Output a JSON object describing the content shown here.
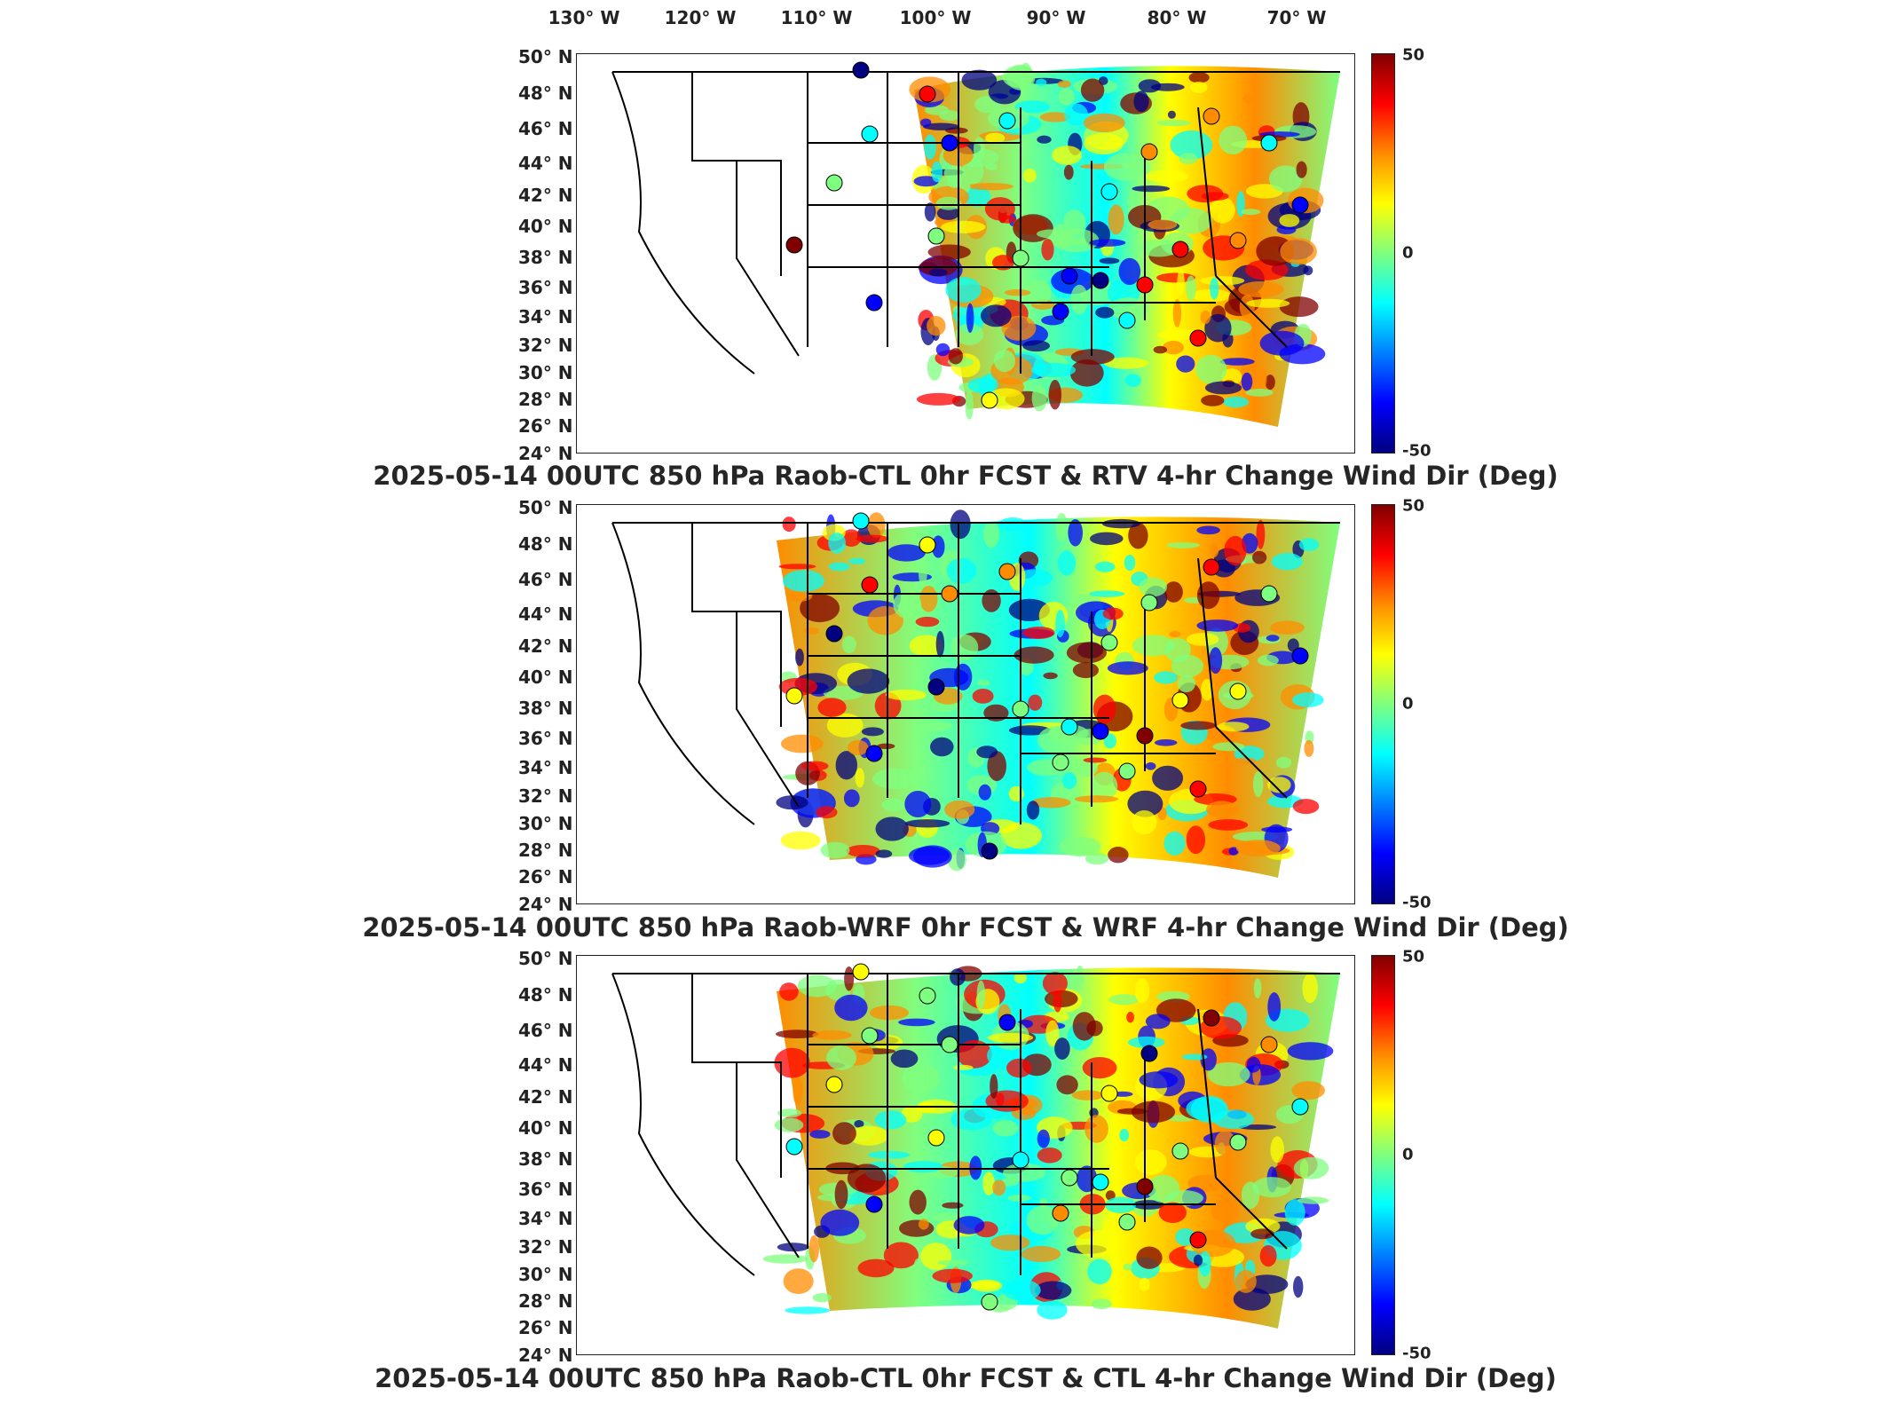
{
  "lon_labels": [
    "130° W",
    "120° W",
    "110° W",
    "100° W",
    "90° W",
    "80° W",
    "70° W"
  ],
  "lat_labels": [
    "50° N",
    "48° N",
    "46° N",
    "44° N",
    "42° N",
    "40° N",
    "38° N",
    "36° N",
    "34° N",
    "32° N",
    "30° N",
    "28° N",
    "26° N",
    "24° N"
  ],
  "colorbar": {
    "max_label": "50",
    "mid_label": "0",
    "min_label": "-50",
    "colormap": "jet",
    "range": [
      -50,
      50
    ]
  },
  "panels": [
    {
      "title": "2025-05-14 00UTC 850 hPa Raob-CTL 0hr FCST & RTV 4-hr Change Wind Dir (Deg)"
    },
    {
      "title": "2025-05-14 00UTC 850 hPa Raob-WRF 0hr FCST & WRF 4-hr Change Wind Dir (Deg)"
    },
    {
      "title": "2025-05-14 00UTC 850 hPa Raob-CTL 0hr FCST & CTL 4-hr Change Wind Dir (Deg)"
    }
  ],
  "colors": {
    "dark_red": "#800000",
    "red": "#ff0000",
    "orange": "#ff8c00",
    "yellow": "#ffff00",
    "green": "#7fff7f",
    "cyan": "#00ffff",
    "blue": "#0000ff",
    "dark_blue": "#000080"
  }
}
